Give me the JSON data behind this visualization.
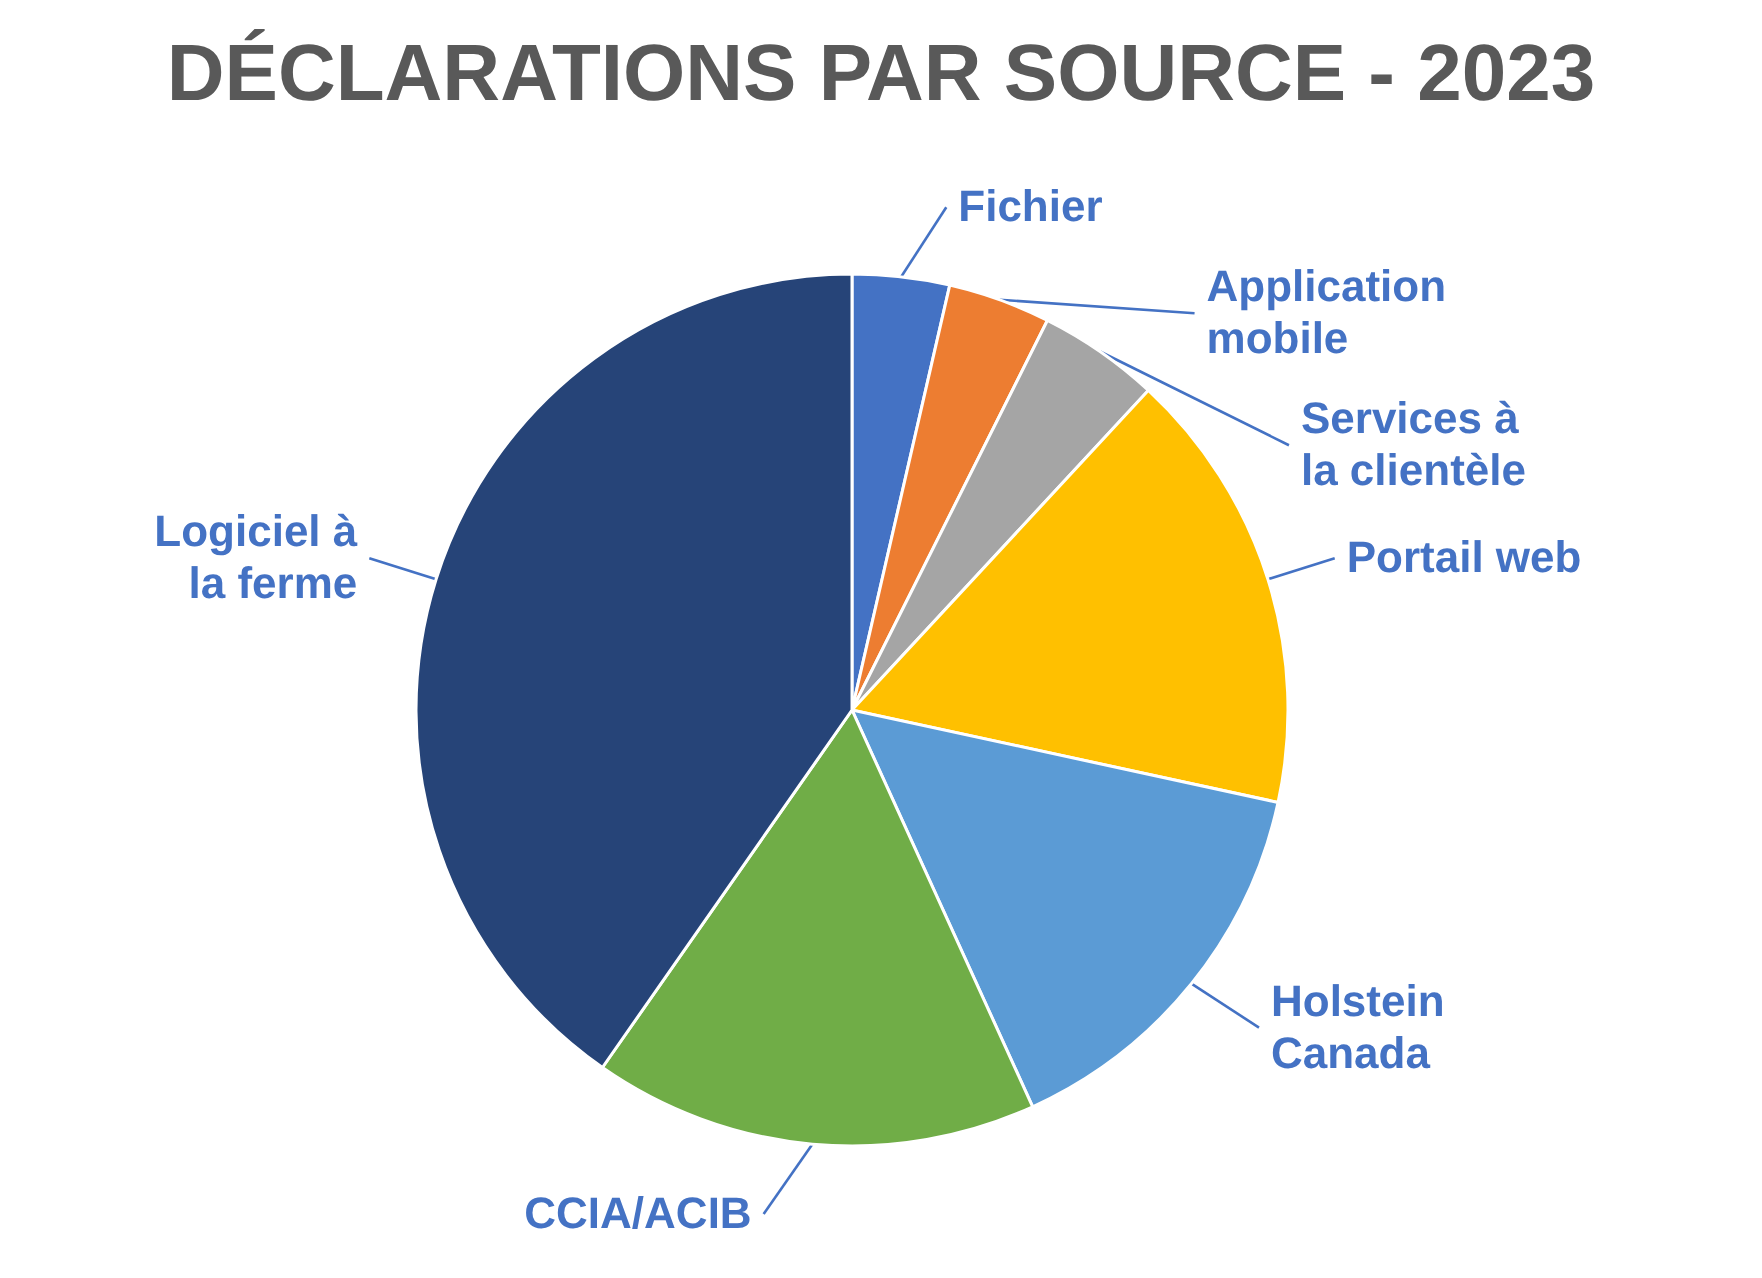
{
  "chart_data": {
    "type": "pie",
    "title": "DÉCLARATIONS PAR SOURCE - 2023",
    "categories": [
      "Fichier",
      "Application mobile",
      "Services à la clientèle",
      "Portail web",
      "Holstein Canada",
      "CCIA/ACIB",
      "Logiciel à la ferme"
    ],
    "values": [
      3.6,
      3.8,
      4.5,
      16.5,
      14.8,
      16.5,
      40.3
    ],
    "colors": [
      "#4472c4",
      "#ed7d31",
      "#a5a5a5",
      "#ffc000",
      "#5b9bd5",
      "#70ad47",
      "#264478"
    ],
    "legend": false
  }
}
